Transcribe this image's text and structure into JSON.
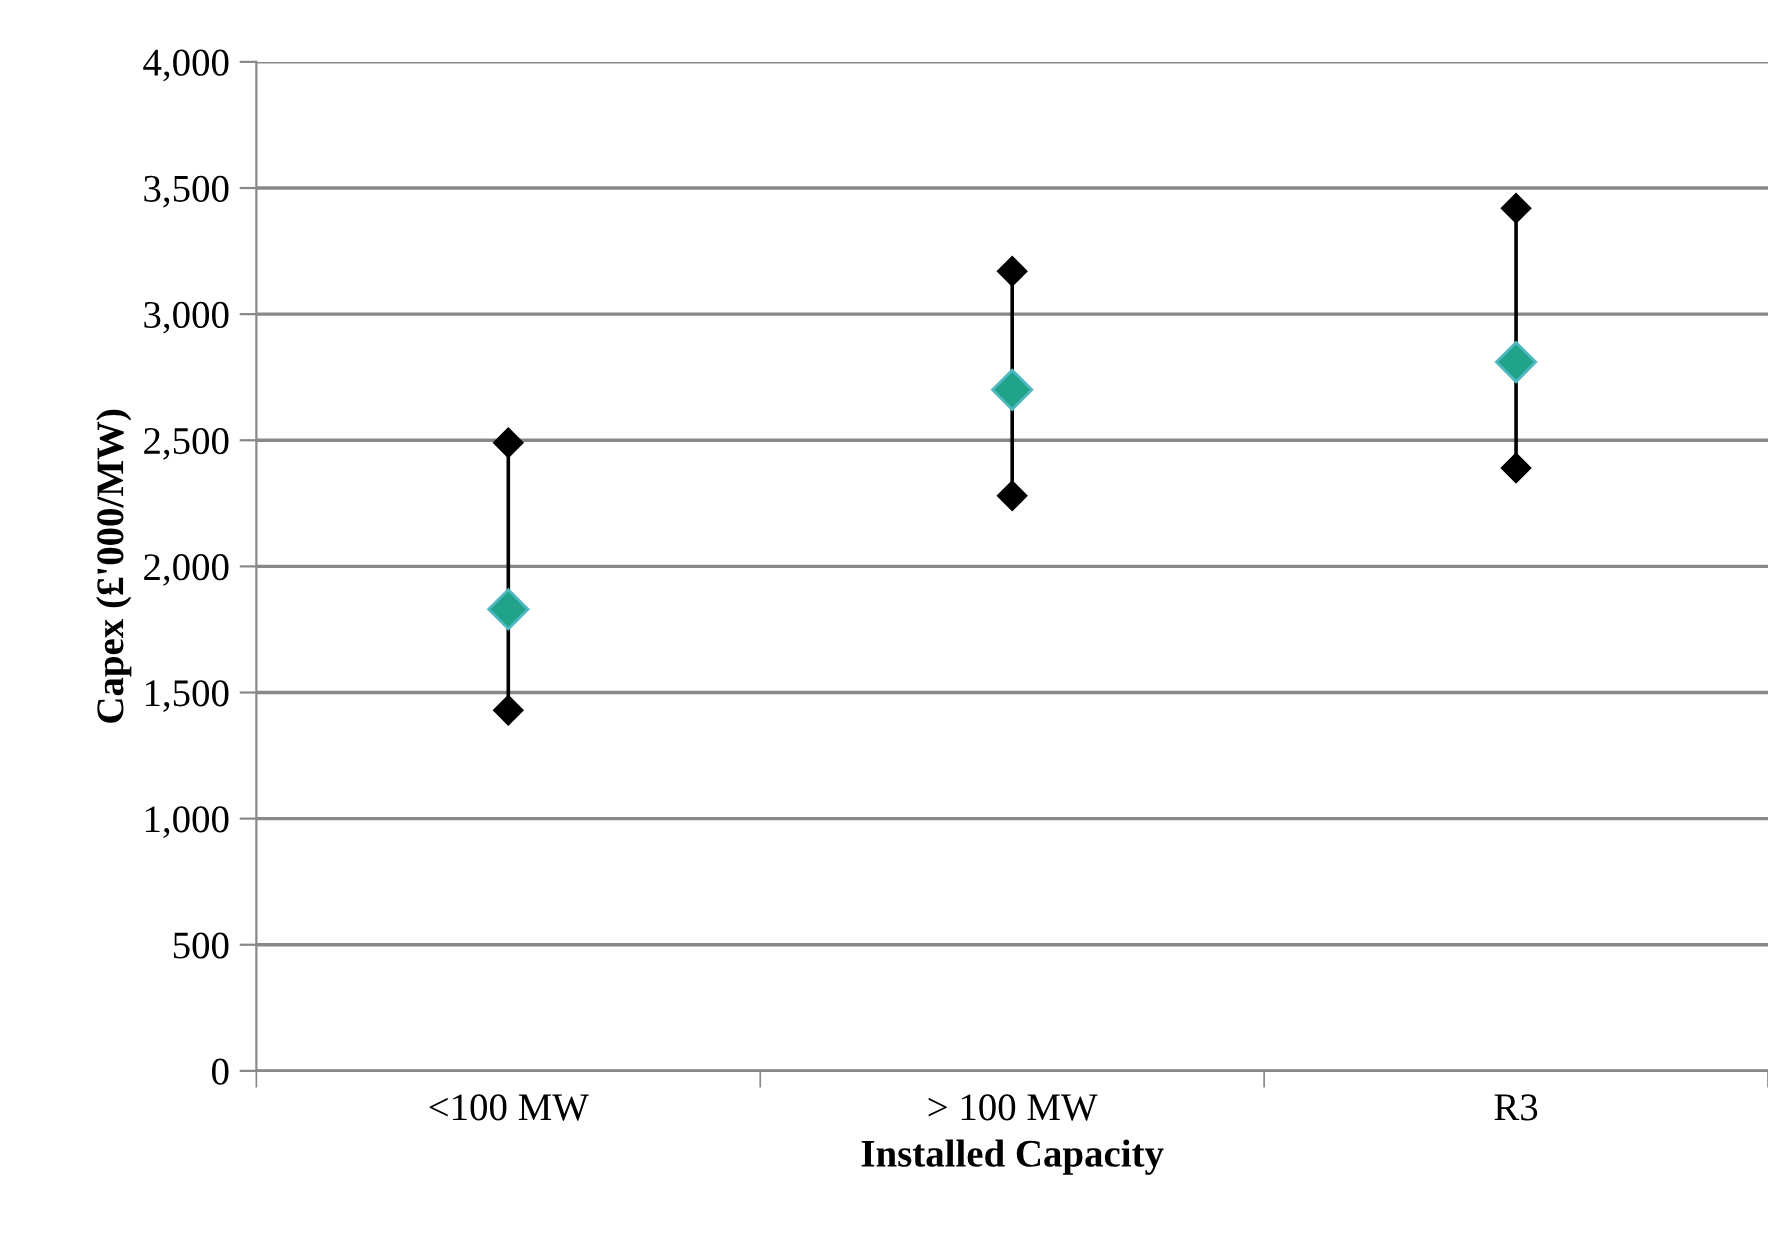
{
  "chart_data": {
    "type": "scatter",
    "xlabel": "Installed Capacity",
    "ylabel": "Capex (£'000/MW)",
    "categories": [
      "<100 MW",
      "> 100 MW",
      "R3"
    ],
    "series": [
      {
        "color": "#000000",
        "values": [
          2490,
          3170,
          3420
        ]
      },
      {
        "color": "#000000",
        "values": [
          1430,
          2280,
          2390
        ]
      },
      {
        "color": "#20a38a",
        "values": [
          1830,
          2700,
          2810
        ]
      }
    ],
    "ylim": [
      0,
      4000
    ],
    "yticks": [
      {
        "value": 0,
        "label": "0"
      },
      {
        "value": 500,
        "label": "500"
      },
      {
        "value": 1000,
        "label": "1,000"
      },
      {
        "value": 1500,
        "label": "1,500"
      },
      {
        "value": 2000,
        "label": "2,000"
      },
      {
        "value": 2500,
        "label": "2,500"
      },
      {
        "value": 3000,
        "label": "3,000"
      },
      {
        "value": 3500,
        "label": "3,500"
      },
      {
        "value": 4000,
        "label": "4,000"
      }
    ],
    "grid": "y",
    "marker": "diamond"
  }
}
